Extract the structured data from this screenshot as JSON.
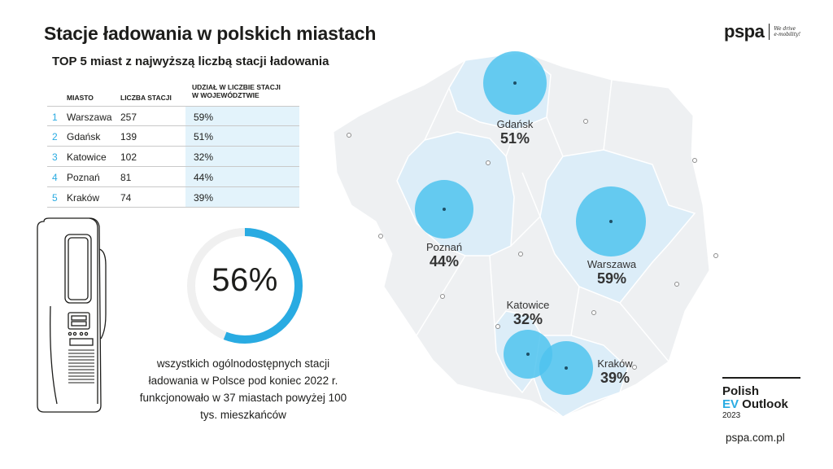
{
  "title": "Stacje ładowania w polskich miastach",
  "subtitle": "TOP 5 miast z najwyższą liczbą stacji ładowania",
  "table": {
    "headers": {
      "city": "MIASTO",
      "count": "LICZBA STACJI",
      "share_line1": "UDZIAŁ W LICZBIE STACJI",
      "share_line2": "W WOJEWÓDZTWIE"
    },
    "rows": [
      {
        "rank": "1",
        "city": "Warszawa",
        "count": "257",
        "share": "59%"
      },
      {
        "rank": "2",
        "city": "Gdańsk",
        "count": "139",
        "share": "51%"
      },
      {
        "rank": "3",
        "city": "Katowice",
        "count": "102",
        "share": "32%"
      },
      {
        "rank": "4",
        "city": "Poznań",
        "count": "81",
        "share": "44%"
      },
      {
        "rank": "5",
        "city": "Kraków",
        "count": "74",
        "share": "39%"
      }
    ]
  },
  "donut": {
    "value": 56,
    "value_label": "56%",
    "caption": "wszystkich ogólnodostępnych stacji ładowania w Polsce pod koniec 2022 r. funkcjonowało w 37 miastach powyżej 100 tys. mieszkańców",
    "color": "#29abe2",
    "track_color": "#f0f0f0"
  },
  "chart_data": {
    "type": "table",
    "columns": [
      "MIASTO",
      "LICZBA STACJI",
      "UDZIAŁ W LICZBIE STACJI W WOJEWÓDZTWIE"
    ],
    "categories": [
      "Warszawa",
      "Gdańsk",
      "Katowice",
      "Poznań",
      "Kraków"
    ],
    "series": [
      {
        "name": "LICZBA STACJI",
        "values": [
          257,
          139,
          102,
          81,
          74
        ]
      },
      {
        "name": "UDZIAŁ W LICZBIE STACJI W WOJEWÓDZTWIE",
        "values": [
          59,
          51,
          32,
          44,
          39
        ]
      }
    ],
    "share_of_all_stations_percent": 56
  },
  "map": {
    "cities": [
      {
        "name": "Gdańsk",
        "pct": "51%"
      },
      {
        "name": "Poznań",
        "pct": "44%"
      },
      {
        "name": "Warszawa",
        "pct": "59%"
      },
      {
        "name": "Katowice",
        "pct": "32%"
      },
      {
        "name": "Kraków",
        "pct": "39%"
      }
    ],
    "colors": {
      "land": "#eef0f2",
      "region": "#dcedf8",
      "bubble": "#4fc3ef",
      "border": "#ffffff"
    }
  },
  "logo": {
    "text": "pspa",
    "tagline_1": "We drive",
    "tagline_2": "e-mobility!"
  },
  "outlook": {
    "line1": "Polish",
    "ev": "EV",
    "line2_rest": " Outlook",
    "year": "2023"
  },
  "url": "pspa.com.pl"
}
